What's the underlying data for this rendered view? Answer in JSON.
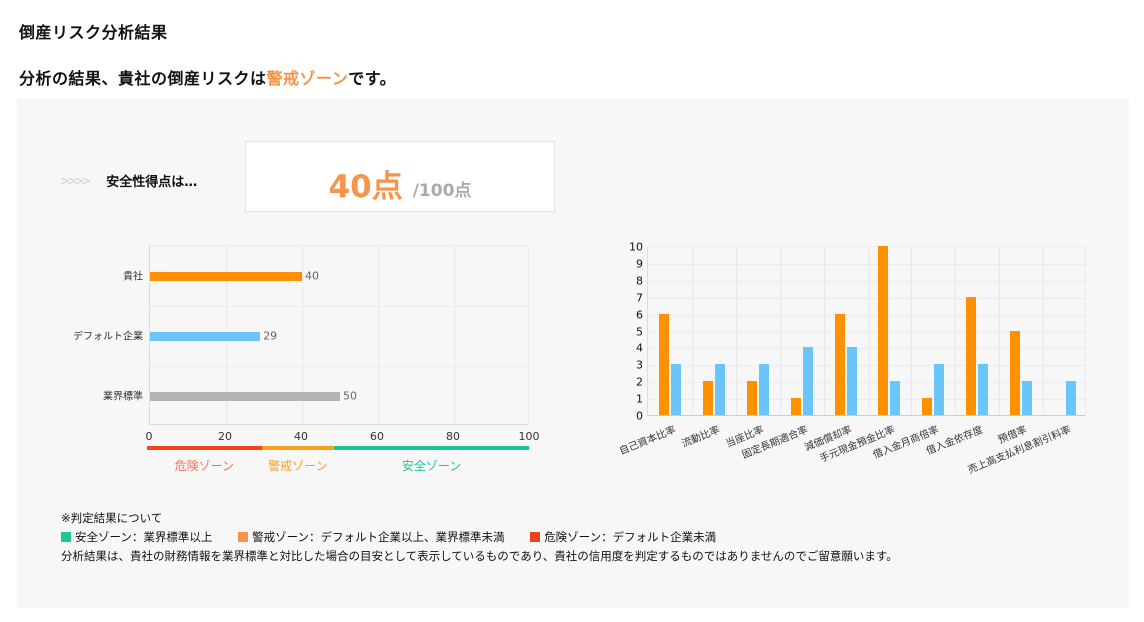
{
  "header": {
    "title": "倒産リスク分析結果",
    "summary_prefix": "分析の結果、貴社の倒産リスクは",
    "summary_zone": "警戒ゾーン",
    "summary_suffix": "です。"
  },
  "score": {
    "label_icon": "triple-chevron-icon",
    "label": "安全性得点は…",
    "value": "40点",
    "max": "/100点"
  },
  "colors": {
    "accent_orange": "#f7944a",
    "bar_orange": "#ff9000",
    "bar_blue": "#6ac6fa",
    "bar_gray": "#b3b3b3",
    "danger": "#f0441e",
    "warning": "#ff9d1e",
    "safe": "#1ec595"
  },
  "zones": [
    {
      "label": "危険ゾーン",
      "from": 0,
      "to": 30,
      "color": "#f0441e",
      "text_color": "#f4725a"
    },
    {
      "label": "警戒ゾーン",
      "from": 30,
      "to": 49,
      "color": "#ff9d1e",
      "text_color": "#ff9d1e"
    },
    {
      "label": "安全ゾーン",
      "from": 49,
      "to": 100,
      "color": "#1ec595",
      "text_color": "#1ec595"
    }
  ],
  "chart_data": [
    {
      "type": "bar",
      "orientation": "horizontal",
      "title": "",
      "categories": [
        "貴社",
        "デフォルト企業",
        "業界標準"
      ],
      "values": [
        40,
        29,
        50
      ],
      "colors": [
        "#ff9000",
        "#6ac6fa",
        "#b3b3b3"
      ],
      "data_labels": [
        "40",
        "29",
        "50"
      ],
      "xlim": [
        0,
        100
      ],
      "xticks": [
        "0",
        "20",
        "40",
        "60",
        "80",
        "100"
      ],
      "grid": true,
      "annotations": [
        "危険ゾーン",
        "警戒ゾーン",
        "安全ゾーン"
      ]
    },
    {
      "type": "bar",
      "orientation": "vertical",
      "title": "",
      "categories": [
        "自己資本比率",
        "流動比率",
        "当座比率",
        "固定長期適合率",
        "減価償却率",
        "手元現金預金比率",
        "借入金月商倍率",
        "借入金依存度",
        "預借率",
        "売上高支払利息割引料率"
      ],
      "series": [
        {
          "name": "貴社",
          "color": "#ff9000",
          "values": [
            6,
            2,
            2,
            1,
            6,
            10,
            1,
            7,
            5,
            0
          ]
        },
        {
          "name": "業界標準",
          "color": "#6ac6fa",
          "values": [
            3,
            3,
            3,
            4,
            4,
            2,
            3,
            3,
            2,
            2
          ]
        }
      ],
      "ylim": [
        0,
        10
      ],
      "yticks": [
        "0",
        "1",
        "2",
        "3",
        "4",
        "5",
        "6",
        "7",
        "8",
        "9",
        "10"
      ],
      "grid": true,
      "xlabel": "",
      "ylabel": ""
    }
  ],
  "notes": {
    "heading": "※判定結果について",
    "legend": [
      {
        "color": "#1ec595",
        "text": "安全ゾーン：業界標準以上"
      },
      {
        "color": "#f7944a",
        "text": "警戒ゾーン：デフォルト企業以上、業界標準未満"
      },
      {
        "color": "#f0441e",
        "text": "危険ゾーン：デフォルト企業未満"
      }
    ],
    "disclaimer": "分析結果は、貴社の財務情報を業界標準と対比した場合の目安として表示しているものであり、貴社の信用度を判定するものではありませんのでご留意願います。"
  }
}
